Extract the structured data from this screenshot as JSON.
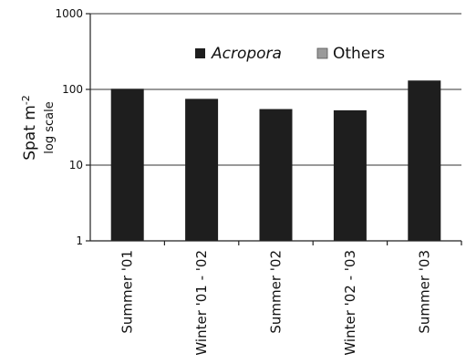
{
  "chart_data": {
    "type": "bar",
    "title": "",
    "ylabel": "Spat m",
    "ylabel_exponent": "-2",
    "ylabel_sub": "log scale",
    "y_scale": "log",
    "ylim": [
      1,
      1000
    ],
    "yticks": [
      {
        "value": 1,
        "label": "1"
      },
      {
        "value": 10,
        "label": "10"
      },
      {
        "value": 100,
        "label": "100"
      },
      {
        "value": 1000,
        "label": "1000"
      }
    ],
    "grid": true,
    "legend_position": "top-right",
    "categories": [
      "Summer '01",
      "Winter '01 - '02",
      "Summer '02",
      "Winter '02 - '03",
      "Summer '03"
    ],
    "series": [
      {
        "name": "Acropora",
        "color": "#1e1e1e",
        "values": [
          102,
          75,
          55,
          53,
          131
        ]
      },
      {
        "name": "Others",
        "color": "#9a9a9a",
        "values": [
          null,
          null,
          null,
          null,
          null
        ]
      }
    ]
  }
}
